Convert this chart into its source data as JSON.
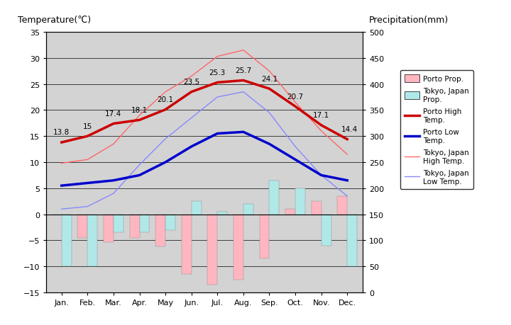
{
  "months": [
    "Jan.",
    "Feb.",
    "Mar.",
    "Apr.",
    "May",
    "Jun.",
    "Jul.",
    "Aug.",
    "Sep.",
    "Oct.",
    "Nov.",
    "Dec."
  ],
  "porto_high": [
    13.8,
    15.0,
    17.4,
    18.1,
    20.1,
    23.5,
    25.3,
    25.7,
    24.1,
    20.7,
    17.1,
    14.4
  ],
  "porto_low": [
    5.5,
    6.0,
    6.5,
    7.5,
    10.0,
    13.0,
    15.5,
    15.8,
    13.5,
    10.5,
    7.5,
    6.5
  ],
  "tokyo_high": [
    9.8,
    10.5,
    13.5,
    19.0,
    23.5,
    26.5,
    30.3,
    31.5,
    27.5,
    21.5,
    16.0,
    11.5
  ],
  "tokyo_low": [
    1.0,
    1.5,
    4.0,
    9.5,
    14.5,
    18.5,
    22.5,
    23.5,
    19.5,
    13.0,
    7.5,
    3.5
  ],
  "porto_precip_scaled": [
    0,
    -4.5,
    -5.3,
    -4.5,
    -6.2,
    -11.5,
    -13.5,
    -12.5,
    -8.5,
    1.0,
    2.5,
    3.5
  ],
  "tokyo_precip_scaled": [
    -10.0,
    -10.0,
    -3.5,
    -3.5,
    -3.0,
    2.5,
    0.5,
    2.0,
    6.5,
    5.0,
    -6.0,
    -10.0
  ],
  "porto_high_labels": [
    "13.8",
    "15",
    "17.4",
    "18.1",
    "20.1",
    "23.5",
    "25.3",
    "25.7",
    "24.1",
    "20.7",
    "17.1",
    "14.4"
  ],
  "bg_color": "#d3d3d3",
  "porto_high_color": "#cc0000",
  "porto_low_color": "#0000cc",
  "tokyo_high_color": "#ff6666",
  "tokyo_low_color": "#8888ff",
  "porto_precip_color": "#ffb6c1",
  "tokyo_precip_color": "#b0e8e8",
  "temp_ylim": [
    -15,
    35
  ],
  "precip_ylim": [
    0,
    500
  ],
  "title_left": "Temperature(℃)",
  "title_right": "Precipitation(mm)",
  "grid_color": "black",
  "yticks_temp": [
    -15,
    -10,
    -5,
    0,
    5,
    10,
    15,
    20,
    25,
    30,
    35
  ],
  "yticks_precip": [
    0,
    50,
    100,
    150,
    200,
    250,
    300,
    350,
    400,
    450,
    500
  ]
}
